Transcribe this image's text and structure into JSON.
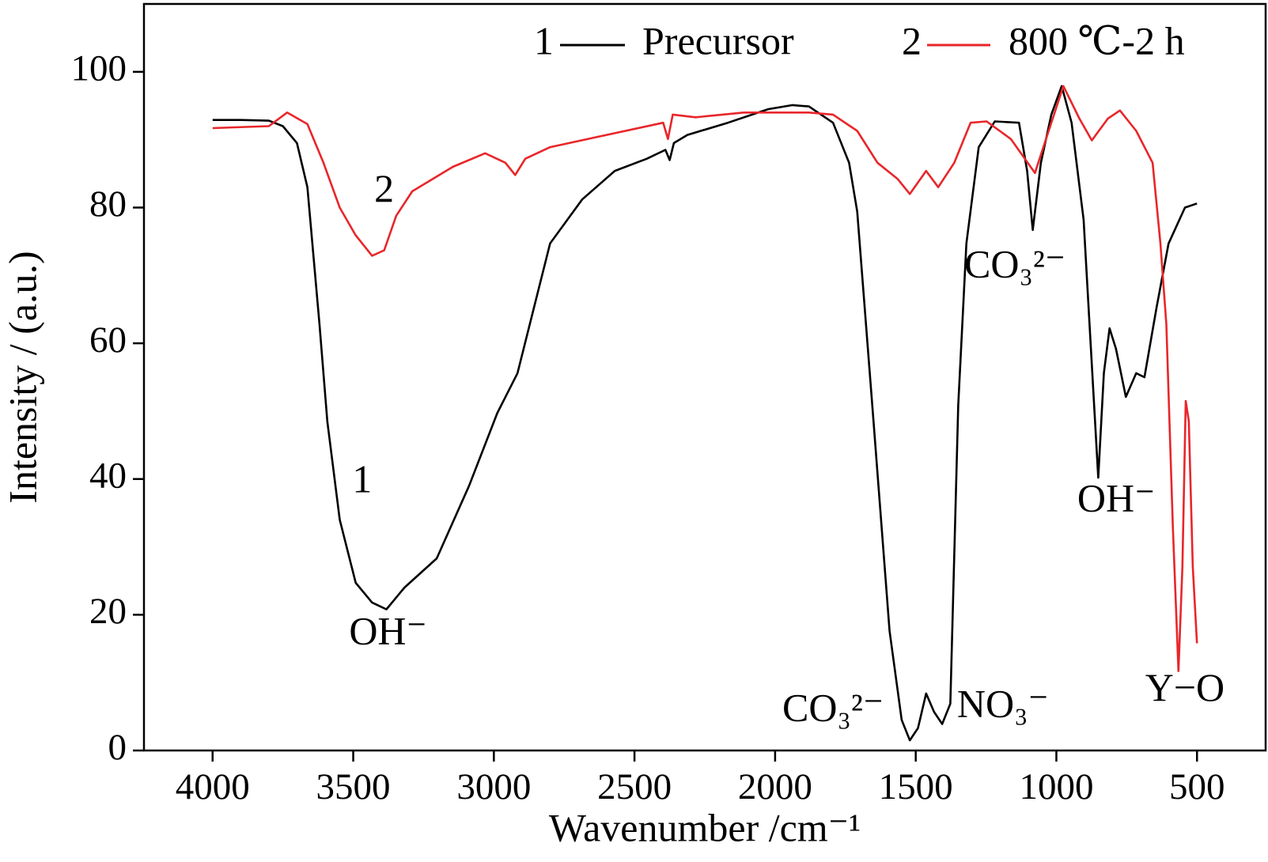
{
  "chart_data": {
    "type": "line",
    "xlabel": "Wavenumber /cm⁻¹",
    "ylabel": "Intensity / (a.u.)",
    "xlim": [
      4244,
      256
    ],
    "ylim": [
      0,
      110
    ],
    "xticks": [
      4000,
      3500,
      3000,
      2500,
      2000,
      1500,
      1000,
      500
    ],
    "yticks": [
      0,
      20,
      40,
      60,
      80,
      100
    ],
    "legend": "upper right",
    "series": [
      {
        "name": "Precursor",
        "label": "1",
        "color": "#000000",
        "x": [
          4000,
          3900,
          3800,
          3750,
          3700,
          3663,
          3620,
          3592,
          3548,
          3491,
          3433,
          3382,
          3318,
          3203,
          3088,
          2988,
          2916,
          2800,
          2686,
          2570,
          2456,
          2390,
          2375,
          2360,
          2312,
          2168,
          2024,
          1938,
          1880,
          1794,
          1737,
          1708,
          1650,
          1593,
          1550,
          1521,
          1492,
          1463,
          1435,
          1406,
          1377,
          1349,
          1320,
          1276,
          1219,
          1133,
          1104,
          1084,
          1055,
          1018,
          981,
          946,
          903,
          874,
          851,
          831,
          811,
          788,
          753,
          716,
          687,
          644,
          601,
          543,
          500
        ],
        "values": [
          92.9,
          92.9,
          92.8,
          92,
          89.5,
          83,
          62.8,
          48.5,
          34,
          24.7,
          21.8,
          20.8,
          24,
          28.3,
          39,
          49.7,
          55.6,
          74.7,
          81.2,
          85.4,
          87.2,
          88.5,
          87,
          89.5,
          90.7,
          92.5,
          94.5,
          95.1,
          94.9,
          92.5,
          86.6,
          79.4,
          48.5,
          17.6,
          4.5,
          1.5,
          3.3,
          8.4,
          5.7,
          3.9,
          6.9,
          50.9,
          74.7,
          88.9,
          92.7,
          92.5,
          85.4,
          76.7,
          86.6,
          93.7,
          97.9,
          92.5,
          78.2,
          56.8,
          40.2,
          55.6,
          62.2,
          59.2,
          52.1,
          55.6,
          55,
          65.2,
          74.7,
          80,
          80.6
        ]
      },
      {
        "name": "800 ℃-2 h",
        "label": "2",
        "color": "#e8262a",
        "x": [
          4000,
          3800,
          3735,
          3663,
          3606,
          3548,
          3491,
          3433,
          3390,
          3347,
          3290,
          3146,
          3031,
          2959,
          2924,
          2888,
          2800,
          2599,
          2398,
          2381,
          2364,
          2283,
          2111,
          1880,
          1794,
          1708,
          1636,
          1564,
          1521,
          1463,
          1420,
          1363,
          1305,
          1248,
          1162,
          1076,
          1018,
          975,
          918,
          874,
          817,
          774,
          716,
          658,
          630,
          609,
          586,
          566,
          552,
          540,
          529,
          515,
          500
        ],
        "values": [
          91.7,
          92,
          94,
          92.3,
          86.6,
          80,
          75.9,
          72.9,
          73.7,
          78.8,
          82.4,
          86,
          88,
          86.6,
          84.8,
          87.2,
          88.9,
          90.7,
          92.5,
          90.1,
          93.7,
          93.3,
          94,
          94,
          93.7,
          91.3,
          86.6,
          84.2,
          82,
          85.4,
          83,
          86.6,
          92.5,
          92.7,
          90.1,
          85.1,
          92.5,
          97.9,
          93.1,
          89.9,
          93.1,
          94.3,
          91.3,
          86.6,
          74.7,
          62.8,
          33,
          11.7,
          27.1,
          51.5,
          48.5,
          27.1,
          15.8
        ]
      }
    ],
    "annotations": [
      {
        "text": "2",
        "x": 3390,
        "y": 82.2
      },
      {
        "text": "1",
        "x": 3468,
        "y": 39.4
      },
      {
        "text": "OH⁻",
        "x": 3376,
        "y": 17
      },
      {
        "text": "CO₃²⁻",
        "x": 1794,
        "y": 5.7
      },
      {
        "text": "NO₃⁻",
        "x": 1190,
        "y": 6.3
      },
      {
        "text": "CO₃²⁻",
        "x": 1147,
        "y": 71.1
      },
      {
        "text": "OH⁻",
        "x": 787,
        "y": 36.6
      },
      {
        "text": "Y−O",
        "x": 543,
        "y": 8.7
      }
    ]
  }
}
